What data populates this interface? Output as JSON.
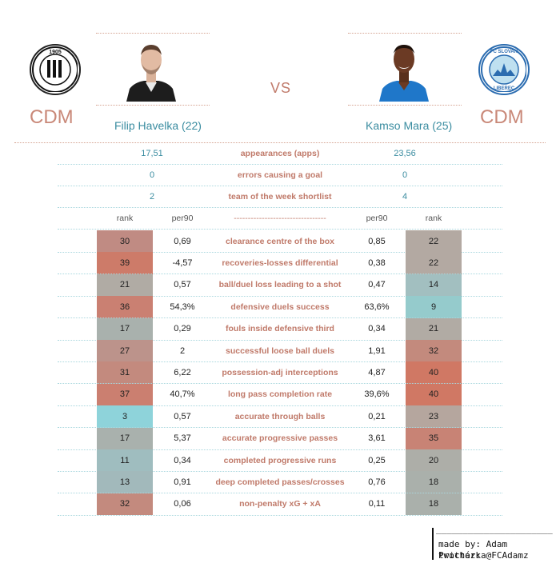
{
  "header": {
    "left": {
      "position": "CDM",
      "name": "Filip Havelka (22)",
      "club_logo_icon": "dynamo-ceske-budejovice-crest-icon",
      "club_logo_text": [
        "1905",
        "SK DYNAMO ČESKÉ BUDĚJOVICE"
      ]
    },
    "vs": "VS",
    "right": {
      "position": "CDM",
      "name": "Kamso Mara (25)",
      "club_logo_icon": "fc-slovan-liberec-crest-icon",
      "club_logo_text": [
        "FC SLOVAN",
        "LIBEREC"
      ]
    }
  },
  "summary": [
    {
      "left": "17,51",
      "label": "appearances (apps)",
      "right": "23,56"
    },
    {
      "left": "0",
      "label": "errors causing a goal",
      "right": "0"
    },
    {
      "left": "2",
      "label": "team of the week shortlist",
      "right": "4"
    }
  ],
  "table_headers": {
    "rank_left": "rank",
    "per90_left": "per90",
    "divider": "---------------------------------",
    "per90_right": "per90",
    "rank_right": "rank"
  },
  "rows": [
    {
      "lrank": "30",
      "lval": "0,69",
      "metric": "clearance centre of the box",
      "rval": "0,85",
      "rrank": "22",
      "lcolor": "#c08b83",
      "rcolor": "#b3a9a2"
    },
    {
      "lrank": "39",
      "lval": "-4,57",
      "metric": "recoveries-losses differential",
      "rval": "0,38",
      "rrank": "22",
      "lcolor": "#cd7b69",
      "rcolor": "#b3a9a2"
    },
    {
      "lrank": "21",
      "lval": "0,57",
      "metric": "ball/duel loss leading to a shot",
      "rval": "0,47",
      "rrank": "14",
      "lcolor": "#b0aba4",
      "rcolor": "#a2bfc0"
    },
    {
      "lrank": "36",
      "lval": "54,3%",
      "metric": "defensive duels success",
      "rval": "63,6%",
      "rrank": "9",
      "lcolor": "#ca8072",
      "rcolor": "#95cbcc"
    },
    {
      "lrank": "17",
      "lval": "0,29",
      "metric": "fouls inside defensive third",
      "rval": "0,34",
      "rrank": "21",
      "lcolor": "#a9b1ad",
      "rcolor": "#b1aba4"
    },
    {
      "lrank": "27",
      "lval": "2",
      "metric": "successful loose ball duels",
      "rval": "1,91",
      "rrank": "32",
      "lcolor": "#bc938b",
      "rcolor": "#c38a7d"
    },
    {
      "lrank": "31",
      "lval": "6,22",
      "metric": "possession-adj interceptions",
      "rval": "4,87",
      "rrank": "40",
      "lcolor": "#c38a7e",
      "rcolor": "#d07864"
    },
    {
      "lrank": "37",
      "lval": "40,7%",
      "metric": "long pass completion rate",
      "rval": "39,6%",
      "rrank": "40",
      "lcolor": "#cb7f70",
      "rcolor": "#d07864"
    },
    {
      "lrank": "3",
      "lval": "0,57",
      "metric": "accurate through balls",
      "rval": "0,21",
      "rrank": "23",
      "lcolor": "#8ed3da",
      "rcolor": "#b5a69e"
    },
    {
      "lrank": "17",
      "lval": "5,37",
      "metric": "accurate progressive passes",
      "rval": "3,61",
      "rrank": "35",
      "lcolor": "#a9b1ad",
      "rcolor": "#c88375"
    },
    {
      "lrank": "11",
      "lval": "0,34",
      "metric": "completed progressive runs",
      "rval": "0,25",
      "rrank": "20",
      "lcolor": "#9fbdbf",
      "rcolor": "#adaea8"
    },
    {
      "lrank": "13",
      "lval": "0,91",
      "metric": "deep completed passes/crosses",
      "rval": "0,76",
      "rrank": "18",
      "lcolor": "#a2b9bb",
      "rcolor": "#aab0ab"
    },
    {
      "lrank": "32",
      "lval": "0,06",
      "metric": "non-penalty xG + xA",
      "rval": "0,11",
      "rrank": "18",
      "lcolor": "#c38a7e",
      "rcolor": "#aab0ab"
    }
  ],
  "credits": {
    "line": "______________________",
    "made_by": "made by: Adam Procházka",
    "twitter": "twitter: @FCAdamz"
  }
}
